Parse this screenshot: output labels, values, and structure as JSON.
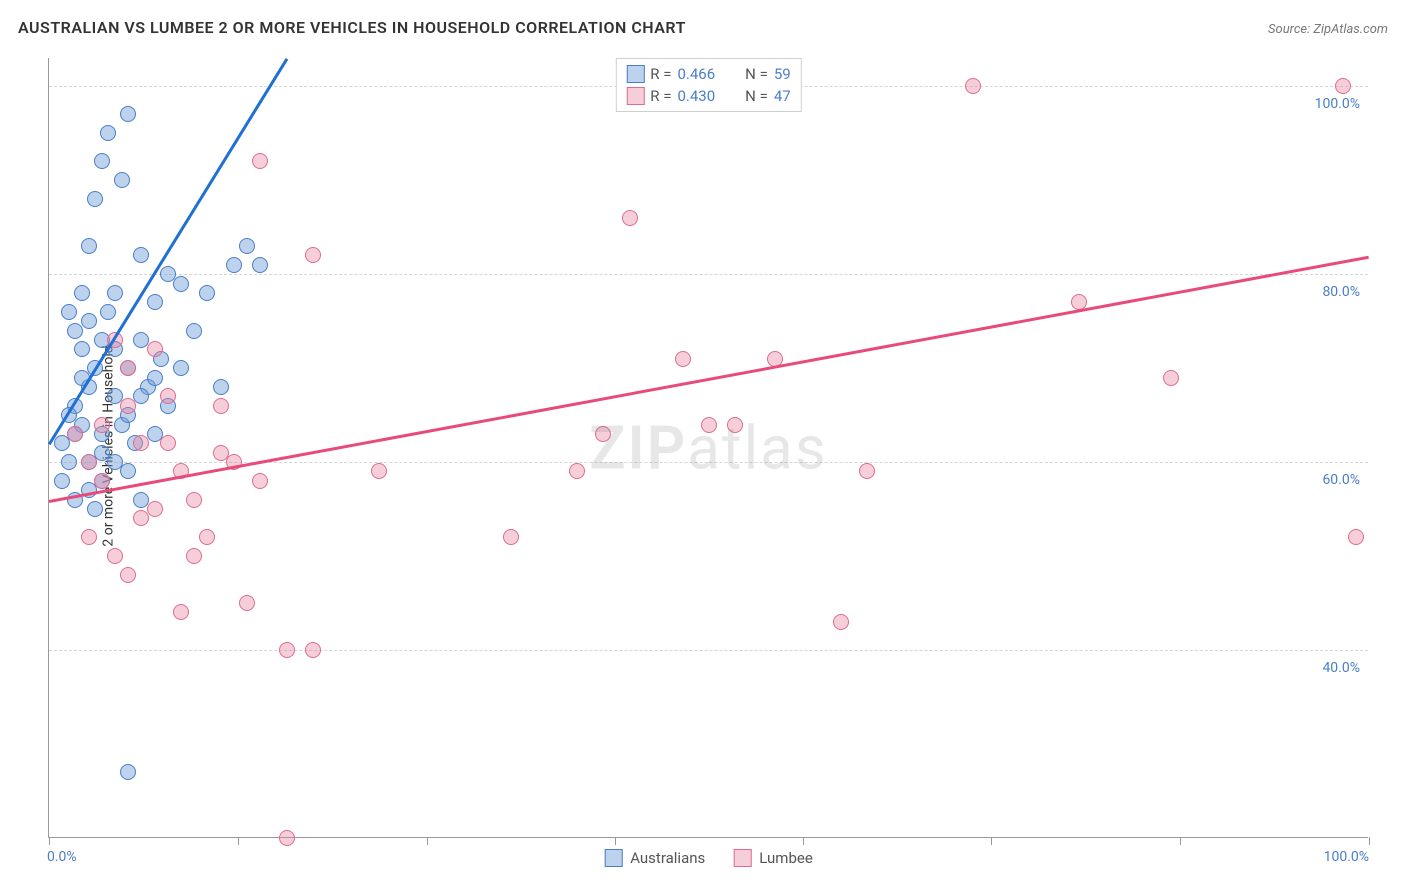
{
  "header": {
    "title": "AUSTRALIAN VS LUMBEE 2 OR MORE VEHICLES IN HOUSEHOLD CORRELATION CHART",
    "source": "Source: ZipAtlas.com"
  },
  "chart": {
    "type": "scatter",
    "ylabel": "2 or more Vehicles in Household",
    "watermark": "ZIPatlas",
    "xlim": [
      0,
      100
    ],
    "ylim": [
      20,
      103
    ],
    "yticks": [
      40,
      60,
      80,
      100
    ],
    "ytick_labels": [
      "40.0%",
      "60.0%",
      "80.0%",
      "100.0%"
    ],
    "xticks": [
      0,
      14.3,
      28.6,
      42.9,
      57.1,
      71.4,
      85.7,
      100
    ],
    "xtick_labels_shown": {
      "0": "0.0%",
      "100": "100.0%"
    },
    "background_color": "#ffffff",
    "grid_color": "#d5d5d5",
    "axis_color": "#999999",
    "tick_label_color": "#4a7ec9",
    "point_radius": 8,
    "point_opacity": 0.55,
    "series": [
      {
        "name": "Australians",
        "color_fill": "rgba(107,155,214,0.45)",
        "color_stroke": "#4a7ec9",
        "r": 0.466,
        "n": 59,
        "trend": {
          "x1": 0,
          "y1": 62,
          "x2": 18,
          "y2": 103,
          "color": "#1f6fd4",
          "width": 2.5
        },
        "points": [
          [
            1,
            62
          ],
          [
            1,
            58
          ],
          [
            1.5,
            60
          ],
          [
            1.5,
            76
          ],
          [
            2,
            74
          ],
          [
            2,
            66
          ],
          [
            2,
            56
          ],
          [
            2.5,
            78
          ],
          [
            2.5,
            72
          ],
          [
            2.5,
            64
          ],
          [
            3,
            83
          ],
          [
            3,
            60
          ],
          [
            3,
            68
          ],
          [
            3.5,
            88
          ],
          [
            3.5,
            70
          ],
          [
            3.5,
            55
          ],
          [
            4,
            92
          ],
          [
            4,
            63
          ],
          [
            4,
            58
          ],
          [
            4.5,
            95
          ],
          [
            4.5,
            76
          ],
          [
            5,
            78
          ],
          [
            5,
            67
          ],
          [
            5,
            72
          ],
          [
            5.5,
            90
          ],
          [
            5.5,
            64
          ],
          [
            6,
            97
          ],
          [
            6,
            70
          ],
          [
            6,
            59
          ],
          [
            6.5,
            62
          ],
          [
            7,
            82
          ],
          [
            7,
            73
          ],
          [
            7,
            56
          ],
          [
            7.5,
            68
          ],
          [
            8,
            77
          ],
          [
            8,
            63
          ],
          [
            8.5,
            71
          ],
          [
            9,
            66
          ],
          [
            9,
            80
          ],
          [
            10,
            79
          ],
          [
            10,
            70
          ],
          [
            11,
            74
          ],
          [
            12,
            78
          ],
          [
            13,
            68
          ],
          [
            14,
            81
          ],
          [
            15,
            83
          ],
          [
            16,
            81
          ],
          [
            6,
            27
          ],
          [
            3,
            57
          ],
          [
            4,
            61
          ],
          [
            2,
            63
          ],
          [
            1.5,
            65
          ],
          [
            3,
            75
          ],
          [
            2.5,
            69
          ],
          [
            4,
            73
          ],
          [
            5,
            60
          ],
          [
            6,
            65
          ],
          [
            7,
            67
          ],
          [
            8,
            69
          ]
        ]
      },
      {
        "name": "Lumbee",
        "color_fill": "rgba(231,132,160,0.40)",
        "color_stroke": "#e06b8f",
        "r": 0.43,
        "n": 47,
        "trend": {
          "x1": 0,
          "y1": 56,
          "x2": 100,
          "y2": 82,
          "color": "#e84b7a",
          "width": 2.5
        },
        "points": [
          [
            2,
            63
          ],
          [
            3,
            60
          ],
          [
            3,
            52
          ],
          [
            4,
            58
          ],
          [
            5,
            73
          ],
          [
            5,
            50
          ],
          [
            6,
            66
          ],
          [
            6,
            48
          ],
          [
            7,
            62
          ],
          [
            8,
            72
          ],
          [
            8,
            55
          ],
          [
            9,
            67
          ],
          [
            10,
            59
          ],
          [
            10,
            44
          ],
          [
            11,
            50
          ],
          [
            12,
            52
          ],
          [
            13,
            66
          ],
          [
            14,
            60
          ],
          [
            15,
            45
          ],
          [
            16,
            58
          ],
          [
            18,
            40
          ],
          [
            18,
            20
          ],
          [
            20,
            40
          ],
          [
            20,
            82
          ],
          [
            16,
            92
          ],
          [
            25,
            59
          ],
          [
            35,
            52
          ],
          [
            40,
            59
          ],
          [
            42,
            63
          ],
          [
            44,
            86
          ],
          [
            48,
            71
          ],
          [
            50,
            64
          ],
          [
            52,
            64
          ],
          [
            55,
            71
          ],
          [
            60,
            43
          ],
          [
            62,
            59
          ],
          [
            70,
            100
          ],
          [
            78,
            77
          ],
          [
            85,
            69
          ],
          [
            98,
            100
          ],
          [
            99,
            52
          ],
          [
            4,
            64
          ],
          [
            6,
            70
          ],
          [
            7,
            54
          ],
          [
            9,
            62
          ],
          [
            11,
            56
          ],
          [
            13,
            61
          ]
        ]
      }
    ],
    "legend_top": [
      {
        "swatch_fill": "rgba(107,155,214,0.45)",
        "swatch_stroke": "#4a7ec9",
        "r_label": "R =",
        "r_val": "0.466",
        "n_label": "N =",
        "n_val": "59"
      },
      {
        "swatch_fill": "rgba(231,132,160,0.40)",
        "swatch_stroke": "#e06b8f",
        "r_label": "R =",
        "r_val": "0.430",
        "n_label": "N =",
        "n_val": "47"
      }
    ],
    "legend_bottom": [
      {
        "swatch_fill": "rgba(107,155,214,0.45)",
        "swatch_stroke": "#4a7ec9",
        "label": "Australians"
      },
      {
        "swatch_fill": "rgba(231,132,160,0.40)",
        "swatch_stroke": "#e06b8f",
        "label": "Lumbee"
      }
    ]
  }
}
